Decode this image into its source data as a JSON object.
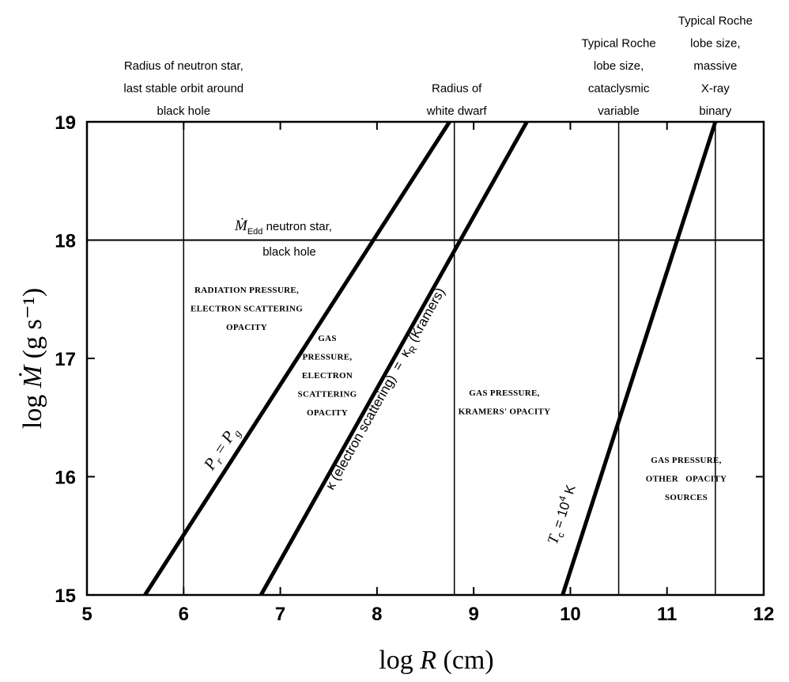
{
  "chart_data": {
    "type": "line",
    "xlabel": "log R (cm)",
    "ylabel": "log Ṁ (g s⁻¹)",
    "xlim": [
      5,
      12
    ],
    "ylim": [
      15,
      19
    ],
    "x_ticks": [
      "5",
      "6",
      "7",
      "8",
      "9",
      "10",
      "11",
      "12"
    ],
    "y_ticks": [
      "15",
      "16",
      "17",
      "18",
      "19"
    ],
    "grid": false,
    "vertical_lines": [
      {
        "x": 6.0,
        "label_lines": [
          "Radius of neutron star,",
          "last stable orbit around",
          "black hole"
        ]
      },
      {
        "x": 8.8,
        "label_lines": [
          "Radius of",
          "white dwarf"
        ]
      },
      {
        "x": 10.5,
        "label_lines": [
          "Typical Roche",
          "lobe size,",
          "cataclysmic",
          "variable"
        ]
      },
      {
        "x": 11.5,
        "label_lines": [
          "Typical Roche",
          "lobe size,",
          "massive",
          "X-ray",
          "binary"
        ]
      }
    ],
    "horizontal_lines": [
      {
        "y": 18.0,
        "label_lines": [
          "Ṁ",
          "Edd",
          " neutron star,",
          "black hole"
        ]
      }
    ],
    "series": [
      {
        "name": "Pr = Pg",
        "points": [
          [
            5.6,
            15
          ],
          [
            8.75,
            19
          ]
        ],
        "label_parts": [
          "P",
          "r",
          " = ",
          "P",
          "g"
        ]
      },
      {
        "name": "κ (electron scattering) = κR (Kramers)",
        "points": [
          [
            6.8,
            15
          ],
          [
            9.55,
            19
          ]
        ],
        "label_parts": [
          "κ (electron scattering)  =  κ",
          "R",
          " (Kramers)"
        ]
      },
      {
        "name": "Tc = 10^4 K",
        "points": [
          [
            9.92,
            15
          ],
          [
            11.5,
            19
          ]
        ],
        "label_parts": [
          "T",
          "c",
          " = 10",
          "4",
          " K"
        ]
      }
    ],
    "regions": [
      {
        "lines": [
          "RADIATION PRESSURE,",
          "ELECTRON SCATTERING",
          "OPACITY"
        ]
      },
      {
        "lines": [
          "GAS",
          "PRESSURE,",
          "ELECTRON",
          "SCATTERING",
          "OPACITY"
        ]
      },
      {
        "lines": [
          "GAS PRESSURE,",
          "KRAMERS' OPACITY"
        ]
      },
      {
        "lines": [
          "GAS PRESSURE,",
          "OTHER   OPACITY",
          "SOURCES"
        ]
      }
    ]
  }
}
